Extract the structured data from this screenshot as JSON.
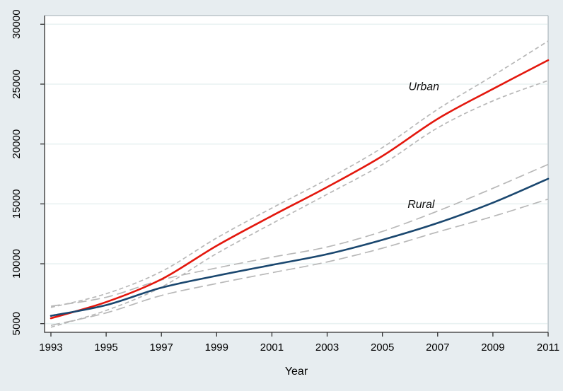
{
  "chart_data": {
    "type": "line",
    "title": "",
    "xlabel": "Year",
    "ylabel": "",
    "grid": true,
    "legend_position": "none",
    "x_ticks": [
      1993,
      1995,
      1997,
      1999,
      2001,
      2003,
      2005,
      2007,
      2009,
      2011
    ],
    "y_ticks": [
      5000,
      10000,
      15000,
      20000,
      25000,
      30000
    ],
    "xlim": [
      1992.77,
      2011
    ],
    "ylim": [
      4274,
      30727
    ],
    "x": [
      1993,
      1995,
      1997,
      1999,
      2001,
      2003,
      2005,
      2007,
      2009,
      2011
    ],
    "series": [
      {
        "name": "Urban",
        "color": "#e3170d",
        "style": "solid",
        "values": [
          5450,
          6800,
          8700,
          11500,
          14000,
          16400,
          19000,
          22100,
          24600,
          27000
        ]
      },
      {
        "name": "Rural",
        "color": "#1a476f",
        "style": "solid",
        "values": [
          5650,
          6550,
          8000,
          9000,
          9900,
          10800,
          12000,
          13400,
          15100,
          17100
        ]
      }
    ],
    "confidence_intervals": [
      {
        "series": "Urban",
        "dash": "short",
        "color": "#b8b8b8",
        "upper": [
          6350,
          7500,
          9350,
          12150,
          14650,
          17050,
          19700,
          22900,
          25700,
          28600
        ],
        "lower": [
          4700,
          6100,
          8050,
          10850,
          13350,
          15800,
          18300,
          21350,
          23600,
          25300
        ]
      },
      {
        "series": "Rural",
        "dash": "long",
        "color": "#b8b8b8",
        "upper": [
          6450,
          7200,
          8650,
          9650,
          10550,
          11400,
          12700,
          14400,
          16300,
          18300
        ],
        "lower": [
          4850,
          5900,
          7350,
          8350,
          9250,
          10150,
          11300,
          12650,
          13950,
          15400
        ]
      }
    ],
    "annotations": [
      {
        "id": "urban",
        "text": "Urban",
        "x": 2006.5,
        "y": 24800
      },
      {
        "id": "rural",
        "text": "Rural",
        "x": 2006.4,
        "y": 14950
      }
    ],
    "colors": {
      "background": "#e7edf0",
      "plot_background": "#ffffff",
      "gridline": "#e9f2f2",
      "axis_dark": "#2f2f2f",
      "axis_light": "#9fabb2",
      "ci": "#b8b8b8"
    }
  }
}
